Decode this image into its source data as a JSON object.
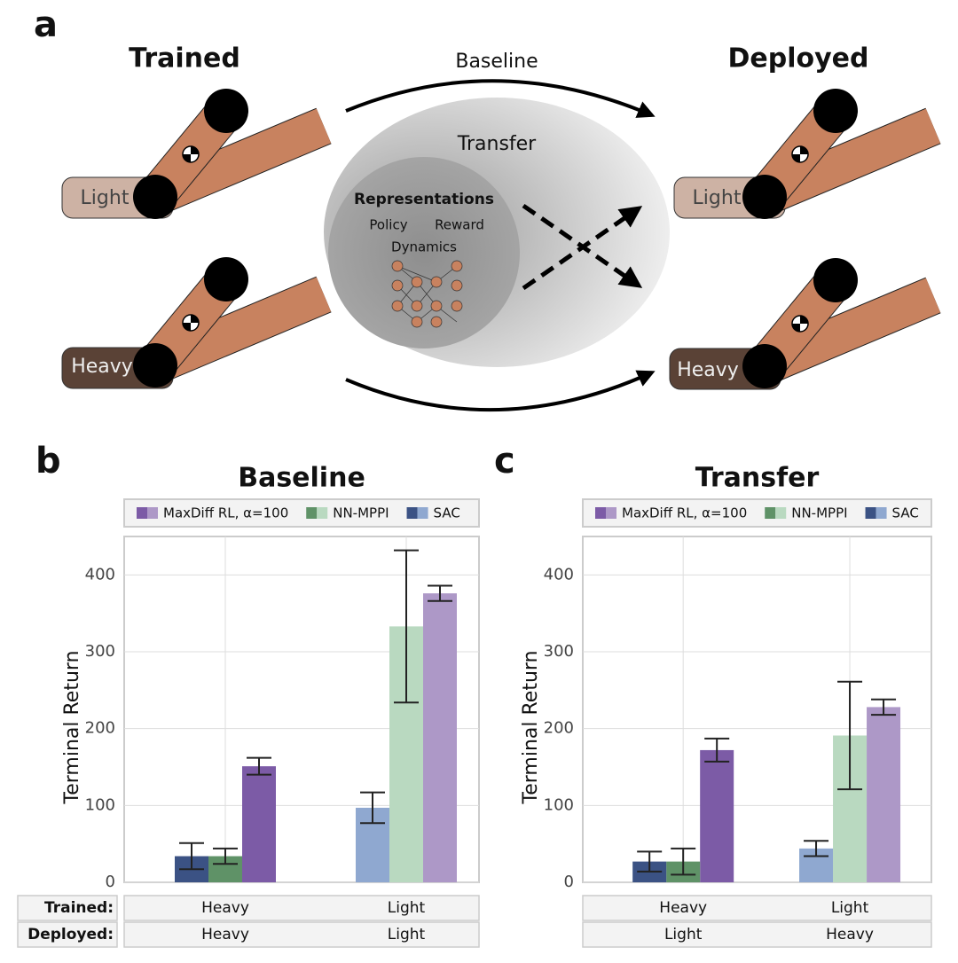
{
  "diagram": {
    "panel": "a",
    "trained": "Trained",
    "deployed": "Deployed",
    "baseline": "Baseline",
    "transfer": "Transfer",
    "representations": "Representations",
    "policy": "Policy",
    "reward": "Reward",
    "dynamics": "Dynamics",
    "light": "Light",
    "heavy": "Heavy"
  },
  "row_labels": [
    "Trained:",
    "Deployed:"
  ],
  "chart_data": [
    {
      "type": "bar",
      "panel": "b",
      "title": "Baseline",
      "y_label": "Terminal Return",
      "categories": [
        "Heavy",
        "Light"
      ],
      "deployed": [
        "Heavy",
        "Light"
      ],
      "ylim": [
        0,
        450
      ],
      "yticks": [
        0,
        100,
        200,
        300,
        400
      ],
      "grid": true,
      "series": [
        {
          "name": "MaxDiff RL, α=100",
          "colors": [
            "#7c5ba6",
            "#ad98c7"
          ],
          "values": [
            151,
            376
          ],
          "errors": [
            11,
            10
          ]
        },
        {
          "name": "NN-MPPI",
          "colors": [
            "#5f9267",
            "#b9d9c0"
          ],
          "values": [
            34,
            333
          ],
          "errors": [
            10,
            99
          ]
        },
        {
          "name": "SAC",
          "colors": [
            "#3b5284",
            "#8fa8d0"
          ],
          "values": [
            34,
            97
          ],
          "errors": [
            17,
            20
          ]
        }
      ]
    },
    {
      "type": "bar",
      "panel": "c",
      "title": "Transfer",
      "y_label": "Terminal Return",
      "categories": [
        "Heavy",
        "Light"
      ],
      "deployed": [
        "Light",
        "Heavy"
      ],
      "ylim": [
        0,
        450
      ],
      "yticks": [
        0,
        100,
        200,
        300,
        400
      ],
      "grid": true,
      "series": [
        {
          "name": "MaxDiff RL, α=100",
          "colors": [
            "#7c5ba6",
            "#ad98c7"
          ],
          "values": [
            172,
            228
          ],
          "errors": [
            15,
            10
          ]
        },
        {
          "name": "NN-MPPI",
          "colors": [
            "#5f9267",
            "#b9d9c0"
          ],
          "values": [
            27,
            191
          ],
          "errors": [
            17,
            70
          ]
        },
        {
          "name": "SAC",
          "colors": [
            "#3b5284",
            "#8fa8d0"
          ],
          "values": [
            27,
            44
          ],
          "errors": [
            13,
            10
          ]
        }
      ]
    }
  ]
}
